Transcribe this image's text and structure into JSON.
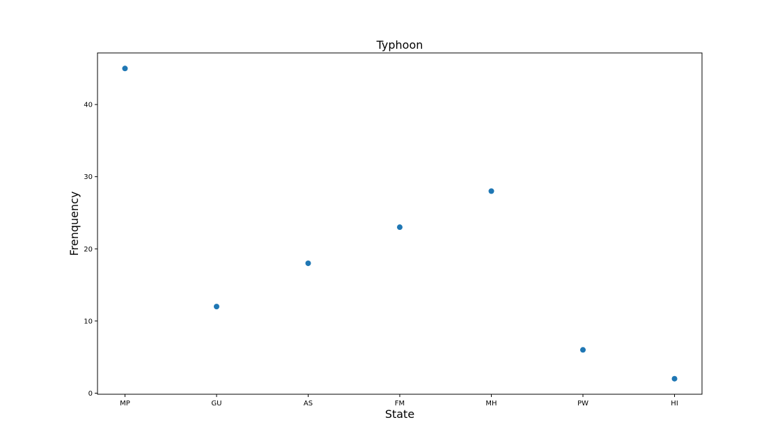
{
  "chart_data": {
    "type": "scatter",
    "title": "Typhoon",
    "xlabel": "State",
    "ylabel": "Frenquency",
    "categories": [
      "MP",
      "GU",
      "AS",
      "FM",
      "MH",
      "PW",
      "HI"
    ],
    "values": [
      45,
      12,
      18,
      23,
      28,
      6,
      2
    ],
    "yticks": [
      0,
      10,
      20,
      30,
      40
    ],
    "ylim": [
      -0.15,
      47.15
    ],
    "grid": false,
    "legend": "none",
    "marker_color": "#1f77b4"
  }
}
